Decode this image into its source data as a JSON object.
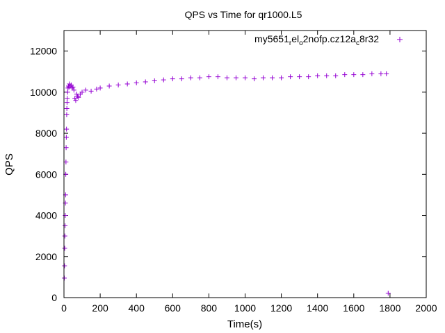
{
  "chart_data": {
    "type": "scatter",
    "title": "QPS vs Time for qr1000.L5",
    "xlabel": "Time(s)",
    "ylabel": "QPS",
    "xlim": [
      0,
      2000
    ],
    "ylim": [
      0,
      13000
    ],
    "xticks": [
      0,
      200,
      400,
      600,
      800,
      1000,
      1200,
      1400,
      1600,
      1800,
      2000
    ],
    "yticks": [
      0,
      2000,
      4000,
      6000,
      8000,
      10000,
      12000
    ],
    "grid": false,
    "legend_position": "top-right",
    "marker": "+",
    "series": [
      {
        "name": "my5651_rel_o2nofp.cz12a_c8r32",
        "name_parts": [
          {
            "text": "my5651",
            "sub": false
          },
          {
            "text": "r",
            "sub": true
          },
          {
            "text": "el",
            "sub": false
          },
          {
            "text": "o",
            "sub": true
          },
          {
            "text": "2nofp.cz12a",
            "sub": false
          },
          {
            "text": "c",
            "sub": true
          },
          {
            "text": "8r32",
            "sub": false
          }
        ],
        "color": "#9400d3",
        "points": [
          [
            2,
            950
          ],
          [
            3,
            1550
          ],
          [
            4,
            2400
          ],
          [
            5,
            3000
          ],
          [
            6,
            3500
          ],
          [
            7,
            4000
          ],
          [
            8,
            4600
          ],
          [
            9,
            5000
          ],
          [
            10,
            6000
          ],
          [
            11,
            6600
          ],
          [
            12,
            7300
          ],
          [
            13,
            7800
          ],
          [
            14,
            8200
          ],
          [
            15,
            8900
          ],
          [
            16,
            9200
          ],
          [
            17,
            9500
          ],
          [
            18,
            9700
          ],
          [
            20,
            10000
          ],
          [
            22,
            10200
          ],
          [
            25,
            10300
          ],
          [
            28,
            10250
          ],
          [
            30,
            10400
          ],
          [
            35,
            10300
          ],
          [
            40,
            10350
          ],
          [
            45,
            10200
          ],
          [
            50,
            10250
          ],
          [
            55,
            10100
          ],
          [
            60,
            9700
          ],
          [
            65,
            9600
          ],
          [
            70,
            9900
          ],
          [
            75,
            9800
          ],
          [
            80,
            9750
          ],
          [
            90,
            9900
          ],
          [
            100,
            10000
          ],
          [
            120,
            10100
          ],
          [
            150,
            10050
          ],
          [
            180,
            10150
          ],
          [
            200,
            10200
          ],
          [
            250,
            10300
          ],
          [
            300,
            10350
          ],
          [
            350,
            10400
          ],
          [
            400,
            10450
          ],
          [
            450,
            10500
          ],
          [
            500,
            10550
          ],
          [
            550,
            10600
          ],
          [
            600,
            10650
          ],
          [
            650,
            10650
          ],
          [
            700,
            10700
          ],
          [
            750,
            10700
          ],
          [
            800,
            10750
          ],
          [
            850,
            10750
          ],
          [
            900,
            10700
          ],
          [
            950,
            10700
          ],
          [
            1000,
            10700
          ],
          [
            1050,
            10650
          ],
          [
            1100,
            10700
          ],
          [
            1150,
            10700
          ],
          [
            1200,
            10700
          ],
          [
            1250,
            10750
          ],
          [
            1300,
            10750
          ],
          [
            1350,
            10750
          ],
          [
            1400,
            10800
          ],
          [
            1450,
            10800
          ],
          [
            1500,
            10800
          ],
          [
            1550,
            10850
          ],
          [
            1600,
            10850
          ],
          [
            1650,
            10850
          ],
          [
            1700,
            10900
          ],
          [
            1750,
            10900
          ],
          [
            1780,
            10900
          ],
          [
            1790,
            220
          ]
        ]
      }
    ]
  }
}
